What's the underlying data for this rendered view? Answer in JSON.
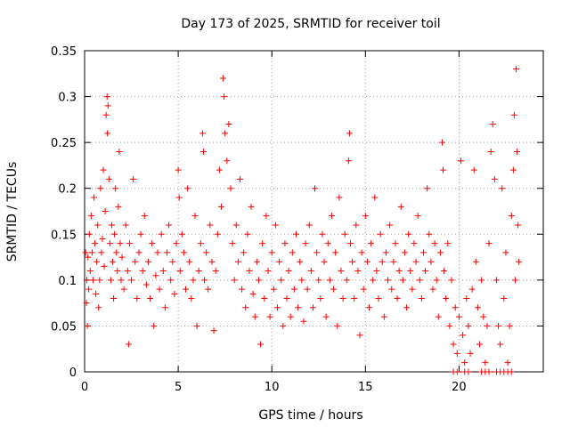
{
  "chart_data": {
    "type": "scatter",
    "title": "Day 173 of 2025, SRMTID for receiver toil",
    "xlabel": "GPS time / hours",
    "ylabel": "SRMTID / TECUs",
    "xlim": [
      0,
      24.5
    ],
    "ylim": [
      0,
      0.35
    ],
    "xticks": [
      0,
      5,
      10,
      15,
      20
    ],
    "yticks": [
      0,
      0.05,
      0.1,
      0.15,
      0.2,
      0.25,
      0.3,
      0.35
    ],
    "xtick_labels": [
      "0",
      "5",
      "10",
      "15",
      "20"
    ],
    "ytick_labels": [
      "0",
      "0.05",
      "0.1",
      "0.15",
      "0.2",
      "0.25",
      "0.3",
      "0.35"
    ],
    "grid": true,
    "marker": "+",
    "color": "#ff0000",
    "series": [
      {
        "points": [
          [
            0.05,
            0.13
          ],
          [
            0.1,
            0.075
          ],
          [
            0.12,
            0.1
          ],
          [
            0.15,
            0.05
          ],
          [
            0.18,
            0.125
          ],
          [
            0.22,
            0.09
          ],
          [
            0.25,
            0.15
          ],
          [
            0.3,
            0.11
          ],
          [
            0.35,
            0.17
          ],
          [
            0.4,
            0.13
          ],
          [
            0.45,
            0.1
          ],
          [
            0.5,
            0.19
          ],
          [
            0.55,
            0.14
          ],
          [
            0.6,
            0.085
          ],
          [
            0.65,
            0.12
          ],
          [
            0.7,
            0.16
          ],
          [
            0.75,
            0.07
          ],
          [
            0.8,
            0.1
          ],
          [
            0.85,
            0.2
          ],
          [
            0.9,
            0.13
          ],
          [
            0.95,
            0.145
          ],
          [
            1.0,
            0.22
          ],
          [
            1.05,
            0.115
          ],
          [
            1.1,
            0.175
          ],
          [
            1.15,
            0.28
          ],
          [
            1.2,
            0.3
          ],
          [
            1.22,
            0.26
          ],
          [
            1.25,
            0.29
          ],
          [
            1.3,
            0.21
          ],
          [
            1.35,
            0.14
          ],
          [
            1.4,
            0.1
          ],
          [
            1.45,
            0.16
          ],
          [
            1.5,
            0.12
          ],
          [
            1.55,
            0.08
          ],
          [
            1.6,
            0.15
          ],
          [
            1.65,
            0.2
          ],
          [
            1.7,
            0.13
          ],
          [
            1.75,
            0.11
          ],
          [
            1.8,
            0.18
          ],
          [
            1.85,
            0.24
          ],
          [
            1.9,
            0.14
          ],
          [
            1.95,
            0.1
          ],
          [
            2.0,
            0.125
          ],
          [
            2.1,
            0.09
          ],
          [
            2.2,
            0.16
          ],
          [
            2.3,
            0.11
          ],
          [
            2.35,
            0.03
          ],
          [
            2.4,
            0.14
          ],
          [
            2.5,
            0.1
          ],
          [
            2.6,
            0.21
          ],
          [
            2.7,
            0.12
          ],
          [
            2.8,
            0.08
          ],
          [
            2.9,
            0.13
          ],
          [
            3.0,
            0.15
          ],
          [
            3.1,
            0.11
          ],
          [
            3.2,
            0.17
          ],
          [
            3.3,
            0.095
          ],
          [
            3.4,
            0.12
          ],
          [
            3.5,
            0.08
          ],
          [
            3.6,
            0.14
          ],
          [
            3.7,
            0.05
          ],
          [
            3.8,
            0.105
          ],
          [
            3.9,
            0.13
          ],
          [
            4.0,
            0.09
          ],
          [
            4.1,
            0.15
          ],
          [
            4.2,
            0.11
          ],
          [
            4.3,
            0.07
          ],
          [
            4.4,
            0.13
          ],
          [
            4.5,
            0.16
          ],
          [
            4.6,
            0.1
          ],
          [
            4.7,
            0.12
          ],
          [
            4.8,
            0.085
          ],
          [
            4.9,
            0.14
          ],
          [
            5.0,
            0.22
          ],
          [
            5.05,
            0.19
          ],
          [
            5.1,
            0.11
          ],
          [
            5.2,
            0.15
          ],
          [
            5.3,
            0.13
          ],
          [
            5.4,
            0.09
          ],
          [
            5.5,
            0.2
          ],
          [
            5.6,
            0.12
          ],
          [
            5.7,
            0.08
          ],
          [
            5.8,
            0.1
          ],
          [
            5.9,
            0.17
          ],
          [
            6.0,
            0.05
          ],
          [
            6.1,
            0.11
          ],
          [
            6.2,
            0.14
          ],
          [
            6.3,
            0.26
          ],
          [
            6.35,
            0.24
          ],
          [
            6.4,
            0.1
          ],
          [
            6.5,
            0.13
          ],
          [
            6.6,
            0.09
          ],
          [
            6.7,
            0.16
          ],
          [
            6.8,
            0.12
          ],
          [
            6.9,
            0.045
          ],
          [
            7.0,
            0.11
          ],
          [
            7.1,
            0.15
          ],
          [
            7.2,
            0.22
          ],
          [
            7.3,
            0.18
          ],
          [
            7.4,
            0.32
          ],
          [
            7.45,
            0.3
          ],
          [
            7.5,
            0.26
          ],
          [
            7.6,
            0.23
          ],
          [
            7.7,
            0.27
          ],
          [
            7.8,
            0.2
          ],
          [
            7.9,
            0.14
          ],
          [
            8.0,
            0.1
          ],
          [
            8.1,
            0.16
          ],
          [
            8.2,
            0.12
          ],
          [
            8.3,
            0.21
          ],
          [
            8.4,
            0.09
          ],
          [
            8.5,
            0.13
          ],
          [
            8.6,
            0.07
          ],
          [
            8.7,
            0.15
          ],
          [
            8.8,
            0.11
          ],
          [
            8.9,
            0.18
          ],
          [
            9.0,
            0.085
          ],
          [
            9.1,
            0.06
          ],
          [
            9.2,
            0.12
          ],
          [
            9.3,
            0.1
          ],
          [
            9.4,
            0.03
          ],
          [
            9.5,
            0.14
          ],
          [
            9.6,
            0.08
          ],
          [
            9.7,
            0.17
          ],
          [
            9.8,
            0.11
          ],
          [
            9.9,
            0.06
          ],
          [
            10.0,
            0.13
          ],
          [
            10.1,
            0.09
          ],
          [
            10.2,
            0.16
          ],
          [
            10.3,
            0.07
          ],
          [
            10.4,
            0.12
          ],
          [
            10.5,
            0.1
          ],
          [
            10.6,
            0.05
          ],
          [
            10.7,
            0.14
          ],
          [
            10.8,
            0.08
          ],
          [
            10.9,
            0.11
          ],
          [
            11.0,
            0.06
          ],
          [
            11.1,
            0.13
          ],
          [
            11.2,
            0.09
          ],
          [
            11.3,
            0.15
          ],
          [
            11.4,
            0.07
          ],
          [
            11.5,
            0.12
          ],
          [
            11.6,
            0.1
          ],
          [
            11.7,
            0.055
          ],
          [
            11.8,
            0.14
          ],
          [
            11.9,
            0.09
          ],
          [
            12.0,
            0.16
          ],
          [
            12.1,
            0.11
          ],
          [
            12.2,
            0.07
          ],
          [
            12.3,
            0.2
          ],
          [
            12.4,
            0.13
          ],
          [
            12.5,
            0.1
          ],
          [
            12.6,
            0.08
          ],
          [
            12.7,
            0.15
          ],
          [
            12.8,
            0.12
          ],
          [
            12.9,
            0.06
          ],
          [
            13.0,
            0.14
          ],
          [
            13.1,
            0.1
          ],
          [
            13.2,
            0.17
          ],
          [
            13.3,
            0.09
          ],
          [
            13.4,
            0.13
          ],
          [
            13.5,
            0.05
          ],
          [
            13.6,
            0.19
          ],
          [
            13.7,
            0.11
          ],
          [
            13.8,
            0.08
          ],
          [
            13.9,
            0.15
          ],
          [
            14.0,
            0.1
          ],
          [
            14.1,
            0.23
          ],
          [
            14.15,
            0.26
          ],
          [
            14.2,
            0.14
          ],
          [
            14.3,
            0.12
          ],
          [
            14.4,
            0.08
          ],
          [
            14.5,
            0.16
          ],
          [
            14.6,
            0.11
          ],
          [
            14.7,
            0.04
          ],
          [
            14.8,
            0.13
          ],
          [
            14.9,
            0.09
          ],
          [
            15.0,
            0.17
          ],
          [
            15.1,
            0.12
          ],
          [
            15.2,
            0.07
          ],
          [
            15.3,
            0.14
          ],
          [
            15.4,
            0.1
          ],
          [
            15.5,
            0.19
          ],
          [
            15.6,
            0.11
          ],
          [
            15.7,
            0.08
          ],
          [
            15.8,
            0.15
          ],
          [
            15.9,
            0.12
          ],
          [
            16.0,
            0.06
          ],
          [
            16.1,
            0.13
          ],
          [
            16.2,
            0.1
          ],
          [
            16.3,
            0.16
          ],
          [
            16.4,
            0.09
          ],
          [
            16.5,
            0.12
          ],
          [
            16.6,
            0.14
          ],
          [
            16.7,
            0.08
          ],
          [
            16.8,
            0.11
          ],
          [
            16.9,
            0.18
          ],
          [
            17.0,
            0.1
          ],
          [
            17.1,
            0.13
          ],
          [
            17.2,
            0.07
          ],
          [
            17.3,
            0.15
          ],
          [
            17.4,
            0.11
          ],
          [
            17.5,
            0.09
          ],
          [
            17.6,
            0.14
          ],
          [
            17.7,
            0.12
          ],
          [
            17.8,
            0.17
          ],
          [
            17.9,
            0.1
          ],
          [
            18.0,
            0.08
          ],
          [
            18.1,
            0.13
          ],
          [
            18.2,
            0.11
          ],
          [
            18.3,
            0.2
          ],
          [
            18.4,
            0.15
          ],
          [
            18.5,
            0.12
          ],
          [
            18.6,
            0.09
          ],
          [
            18.7,
            0.14
          ],
          [
            18.8,
            0.1
          ],
          [
            18.9,
            0.06
          ],
          [
            19.0,
            0.13
          ],
          [
            19.1,
            0.25
          ],
          [
            19.15,
            0.22
          ],
          [
            19.2,
            0.11
          ],
          [
            19.3,
            0.08
          ],
          [
            19.4,
            0.14
          ],
          [
            19.5,
            0.05
          ],
          [
            19.6,
            0.1
          ],
          [
            19.7,
            0.03
          ],
          [
            19.8,
            0.07
          ],
          [
            19.9,
            0.02
          ],
          [
            20.0,
            0.06
          ],
          [
            20.1,
            0.23
          ],
          [
            20.2,
            0.04
          ],
          [
            20.3,
            0.01
          ],
          [
            20.4,
            0.08
          ],
          [
            20.5,
            0.05
          ],
          [
            20.6,
            0.02
          ],
          [
            20.7,
            0.09
          ],
          [
            20.8,
            0.22
          ],
          [
            20.9,
            0.12
          ],
          [
            21.0,
            0.07
          ],
          [
            21.1,
            0.03
          ],
          [
            21.2,
            0.1
          ],
          [
            21.3,
            0.06
          ],
          [
            21.4,
            0.01
          ],
          [
            21.5,
            0.05
          ],
          [
            21.6,
            0.14
          ],
          [
            21.7,
            0.24
          ],
          [
            21.8,
            0.27
          ],
          [
            21.9,
            0.21
          ],
          [
            22.0,
            0.1
          ],
          [
            22.1,
            0.05
          ],
          [
            22.2,
            0.03
          ],
          [
            22.3,
            0.2
          ],
          [
            22.4,
            0.08
          ],
          [
            22.5,
            0.13
          ],
          [
            22.6,
            0.01
          ],
          [
            22.7,
            0.05
          ],
          [
            22.8,
            0.17
          ],
          [
            22.9,
            0.22
          ],
          [
            22.95,
            0.28
          ],
          [
            23.0,
            0.1
          ],
          [
            23.05,
            0.33
          ],
          [
            23.1,
            0.24
          ],
          [
            23.15,
            0.16
          ],
          [
            23.2,
            0.12
          ],
          [
            19.7,
            0.0
          ],
          [
            19.9,
            0.0
          ],
          [
            20.3,
            0.0
          ],
          [
            20.5,
            0.0
          ],
          [
            21.2,
            0.0
          ],
          [
            21.4,
            0.0
          ],
          [
            21.6,
            0.0
          ],
          [
            22.0,
            0.0
          ],
          [
            22.2,
            0.0
          ],
          [
            22.4,
            0.0
          ],
          [
            22.6,
            0.0
          ],
          [
            22.8,
            0.0
          ]
        ]
      }
    ]
  }
}
